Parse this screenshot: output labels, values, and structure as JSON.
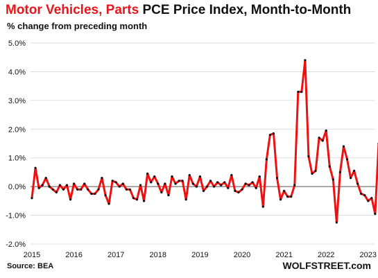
{
  "header": {
    "title_red": "Motor Vehicles, Parts",
    "title_black": "PCE Price Index, Month-to-Month",
    "subtitle": "% change from preceding month"
  },
  "footer": {
    "source": "Source: BEA",
    "brand": "WOLFSTREET.com"
  },
  "chart_data": {
    "type": "line",
    "title": "Motor Vehicles, Parts PCE Price Index, Month-to-Month",
    "subtitle": "% change from preceding month",
    "ylim": [
      -2.0,
      5.0
    ],
    "y_ticks": [
      "-2.0%",
      "-1.0%",
      "0.0%",
      "1.0%",
      "2.0%",
      "3.0%",
      "4.0%",
      "5.0%"
    ],
    "y_tick_values": [
      -2,
      -1,
      0,
      1,
      2,
      3,
      4,
      5
    ],
    "x_ticks": [
      "2015",
      "2016",
      "2017",
      "2018",
      "2019",
      "2020",
      "2021",
      "2022",
      "2023"
    ],
    "grid": "horizontal",
    "series_color": "#ee1111",
    "marker_color": "#111111",
    "x_start": "2015-01",
    "series": [
      {
        "values": [
          -0.4,
          0.65,
          -0.05,
          0.05,
          0.3,
          0.0,
          -0.1,
          -0.2,
          0.05,
          -0.1,
          0.05,
          -0.45,
          0.1,
          -0.1,
          -0.1,
          0.1,
          -0.1,
          -0.25,
          -0.25,
          -0.1,
          0.3,
          -0.3,
          -0.6,
          0.2,
          0.15,
          0.0,
          0.1,
          -0.1,
          -0.1,
          -0.4,
          -0.45,
          0.05,
          -0.5,
          0.45,
          0.15,
          0.35,
          0.1,
          -0.2,
          0.1,
          -0.3,
          0.35,
          0.1,
          0.2,
          0.2,
          -0.45,
          0.4,
          0.1,
          0.0,
          0.35,
          -0.15,
          0.0,
          0.2,
          0.0,
          0.15,
          0.05,
          0.15,
          -0.05,
          0.4,
          -0.15,
          -0.2,
          -0.1,
          0.1,
          0.05,
          0.15,
          -0.05,
          0.35,
          -0.7,
          0.95,
          1.8,
          1.85,
          0.3,
          -0.45,
          -0.15,
          -0.35,
          -0.35,
          0.05,
          3.3,
          3.3,
          4.4,
          1.05,
          0.45,
          0.55,
          1.7,
          1.6,
          1.95,
          0.7,
          0.25,
          -1.25,
          0.5,
          1.4,
          0.95,
          0.3,
          0.55,
          0.1,
          -0.25,
          -0.3,
          -0.5,
          -0.4,
          -0.95,
          1.5
        ]
      }
    ]
  }
}
